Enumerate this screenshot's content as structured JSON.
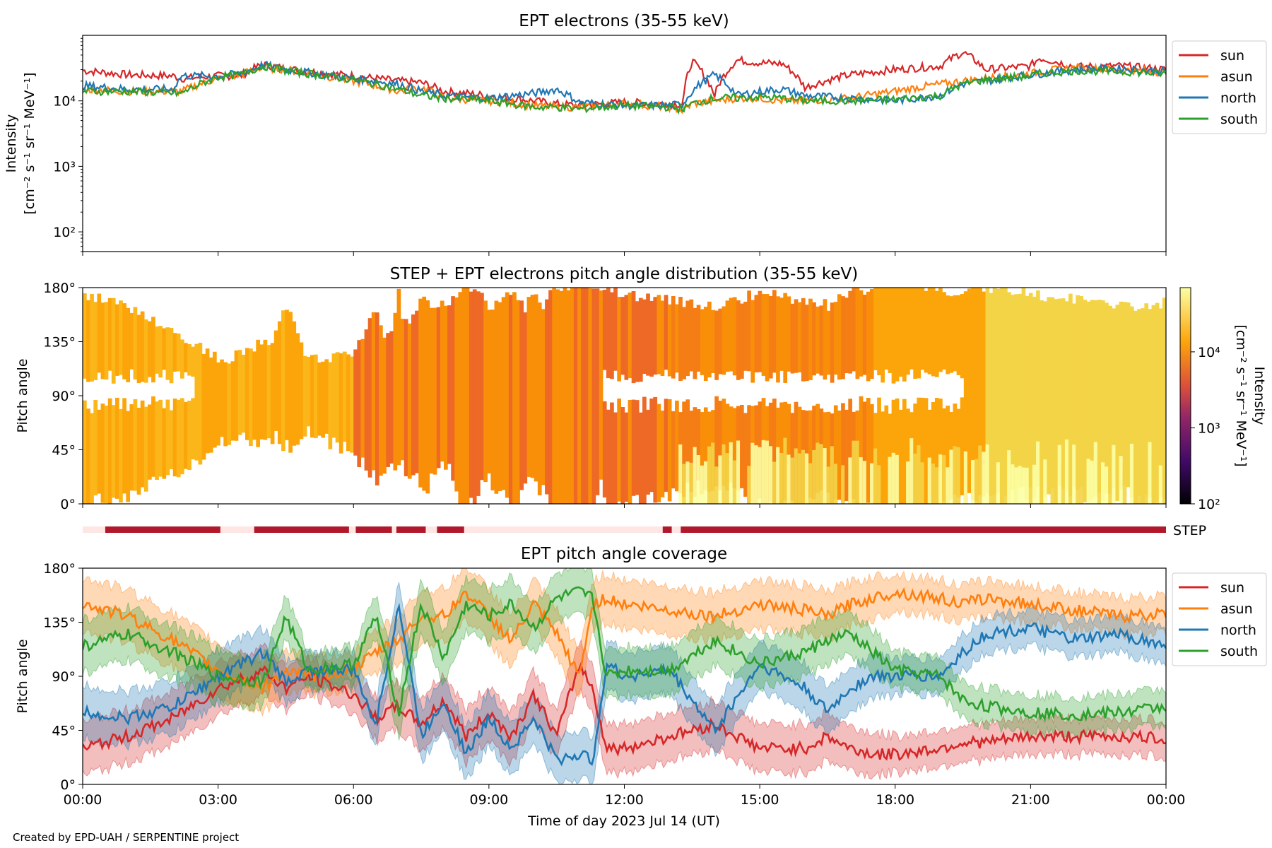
{
  "footer": {
    "credit": "Created by EPD-UAH / SERPENTINE project"
  },
  "colors": {
    "sun": "#d62728",
    "asun": "#ff7f0e",
    "north": "#1f77b4",
    "south": "#2ca02c",
    "step_bar": "#b2182b",
    "step_gap": "#fde6e3"
  },
  "chart_data": [
    {
      "type": "line",
      "title": "EPT electrons (35-55 keV)",
      "ylabel": [
        "Intensity",
        "[cm⁻² s⁻¹ sr⁻¹ MeV⁻¹]"
      ],
      "yscale": "log",
      "ylim": [
        50,
        100000
      ],
      "yticks": [
        {
          "v": 100,
          "label": "10²"
        },
        {
          "v": 1000,
          "label": "10³"
        },
        {
          "v": 10000,
          "label": "10⁴"
        }
      ],
      "xlim": [
        0,
        24
      ],
      "legend": "outside-right",
      "x_hours": [
        0,
        1,
        2,
        2.2,
        3,
        3.5,
        4,
        4.5,
        5,
        6,
        7,
        7.5,
        8,
        9,
        10,
        10.5,
        11,
        12,
        13,
        13.3,
        13.5,
        14,
        14.5,
        15,
        15.5,
        16,
        17,
        18,
        19,
        19.5,
        20,
        21,
        21.2,
        22,
        23,
        24
      ],
      "series": [
        {
          "name": "sun",
          "values": [
            29000,
            25000,
            24000,
            22000,
            24000,
            24000,
            36000,
            31000,
            28000,
            24000,
            20000,
            19000,
            14000,
            12000,
            10000,
            9000,
            8500,
            9500,
            9000,
            9000,
            40000,
            12000,
            42000,
            38000,
            37000,
            16000,
            25000,
            30000,
            34000,
            55000,
            30000,
            34000,
            45000,
            33000,
            34000,
            30000
          ]
        },
        {
          "name": "asun",
          "values": [
            15000,
            14000,
            14000,
            14000,
            22000,
            25000,
            33000,
            30000,
            26000,
            20000,
            14000,
            16000,
            11000,
            10000,
            8500,
            8000,
            8000,
            9000,
            8000,
            7000,
            9000,
            10000,
            11000,
            11000,
            10000,
            10000,
            11000,
            14000,
            18000,
            20000,
            22000,
            26000,
            28000,
            32000,
            30000,
            27000
          ]
        },
        {
          "name": "north",
          "values": [
            17000,
            15000,
            15000,
            24000,
            24000,
            26000,
            35000,
            30000,
            27000,
            22000,
            18000,
            14000,
            12000,
            11000,
            13000,
            15000,
            9500,
            8500,
            8500,
            9000,
            14000,
            25000,
            12000,
            14000,
            15000,
            12000,
            11000,
            10000,
            12000,
            18000,
            20000,
            25000,
            26000,
            30000,
            31000,
            28000
          ]
        },
        {
          "name": "south",
          "values": [
            14000,
            14000,
            13000,
            13000,
            23000,
            25000,
            34000,
            29000,
            26000,
            21000,
            15000,
            12000,
            11000,
            10000,
            8000,
            8000,
            7500,
            8500,
            8000,
            7500,
            9000,
            11000,
            11000,
            11500,
            11000,
            10000,
            10000,
            10500,
            12000,
            18000,
            21000,
            24000,
            26000,
            29000,
            28000,
            26000
          ]
        }
      ]
    },
    {
      "type": "heatmap",
      "title": "STEP + EPT electrons pitch angle distribution (35-55 keV)",
      "ylabel": "Pitch angle",
      "ylim": [
        0,
        180
      ],
      "yticks": [
        {
          "v": 0,
          "label": "0°"
        },
        {
          "v": 45,
          "label": "45°"
        },
        {
          "v": 90,
          "label": "90°"
        },
        {
          "v": 135,
          "label": "135°"
        },
        {
          "v": 180,
          "label": "180°"
        }
      ],
      "xlim": [
        0,
        24
      ],
      "colorbar": {
        "label": [
          "Intensity",
          "[cm⁻² s⁻¹ sr⁻¹ MeV⁻¹]"
        ],
        "scale": "log",
        "range": [
          100,
          70000
        ],
        "ticks": [
          {
            "v": 100,
            "label": "10²"
          },
          {
            "v": 1000,
            "label": "10³"
          },
          {
            "v": 10000,
            "label": "10⁴"
          }
        ]
      },
      "step_label": "STEP",
      "step_coverage_hours": [
        [
          0.5,
          3.05
        ],
        [
          3.8,
          5.9
        ],
        [
          6.05,
          6.85
        ],
        [
          6.95,
          7.6
        ],
        [
          7.85,
          8.45
        ],
        [
          12.85,
          13.05
        ],
        [
          13.25,
          24
        ]
      ]
    },
    {
      "type": "line",
      "title": "EPT pitch angle coverage",
      "ylabel": "Pitch angle",
      "xlabel": "Time of day 2023 Jul 14 (UT)",
      "ylim": [
        0,
        180
      ],
      "yticks": [
        {
          "v": 0,
          "label": "0°"
        },
        {
          "v": 45,
          "label": "45°"
        },
        {
          "v": 90,
          "label": "90°"
        },
        {
          "v": 135,
          "label": "135°"
        },
        {
          "v": 180,
          "label": "180°"
        }
      ],
      "xlim": [
        0,
        24
      ],
      "xticks": [
        {
          "v": 0,
          "label": "00:00"
        },
        {
          "v": 3,
          "label": "03:00"
        },
        {
          "v": 6,
          "label": "06:00"
        },
        {
          "v": 9,
          "label": "09:00"
        },
        {
          "v": 12,
          "label": "12:00"
        },
        {
          "v": 15,
          "label": "15:00"
        },
        {
          "v": 18,
          "label": "18:00"
        },
        {
          "v": 21,
          "label": "21:00"
        },
        {
          "v": 24,
          "label": "00:00"
        }
      ],
      "legend": "outside-right",
      "x_hours": [
        0,
        1,
        2,
        3,
        4,
        4.5,
        5,
        6,
        6.5,
        7,
        7.5,
        8,
        8.5,
        9,
        9.5,
        10,
        10.5,
        11,
        11.3,
        11.6,
        12,
        13,
        14,
        15,
        16,
        16.5,
        17,
        17.5,
        18,
        19,
        19.5,
        20,
        21,
        22,
        23,
        24
      ],
      "band_halfwidth": [
        22,
        22,
        22,
        22,
        20,
        18,
        15,
        15,
        18,
        20,
        22,
        22,
        22,
        22,
        22,
        20,
        20,
        20,
        20,
        20,
        20,
        20,
        20,
        20,
        20,
        20,
        18,
        18,
        15,
        15,
        15,
        15,
        15,
        15,
        15,
        15
      ],
      "series": [
        {
          "name": "sun",
          "values": [
            30,
            40,
            55,
            80,
            95,
            80,
            90,
            75,
            55,
            65,
            50,
            70,
            40,
            60,
            40,
            75,
            40,
            100,
            80,
            30,
            30,
            40,
            50,
            30,
            30,
            40,
            30,
            25,
            25,
            30,
            35,
            35,
            40,
            40,
            40,
            38
          ]
        },
        {
          "name": "asun",
          "values": [
            150,
            140,
            120,
            95,
            80,
            95,
            90,
            95,
            110,
            120,
            140,
            140,
            160,
            140,
            120,
            150,
            125,
            90,
            150,
            155,
            150,
            145,
            140,
            150,
            145,
            140,
            150,
            155,
            160,
            155,
            150,
            155,
            150,
            145,
            140,
            142
          ]
        },
        {
          "name": "north",
          "values": [
            60,
            55,
            65,
            90,
            110,
            85,
            95,
            95,
            50,
            150,
            40,
            70,
            25,
            55,
            30,
            55,
            20,
            25,
            20,
            100,
            90,
            95,
            45,
            100,
            80,
            60,
            80,
            90,
            90,
            90,
            110,
            125,
            130,
            120,
            125,
            115
          ]
        },
        {
          "name": "south",
          "values": [
            115,
            125,
            110,
            90,
            85,
            140,
            95,
            100,
            140,
            60,
            150,
            105,
            150,
            140,
            150,
            130,
            155,
            160,
            155,
            90,
            95,
            95,
            120,
            100,
            110,
            120,
            125,
            110,
            95,
            90,
            70,
            65,
            60,
            58,
            60,
            65
          ]
        }
      ]
    }
  ]
}
